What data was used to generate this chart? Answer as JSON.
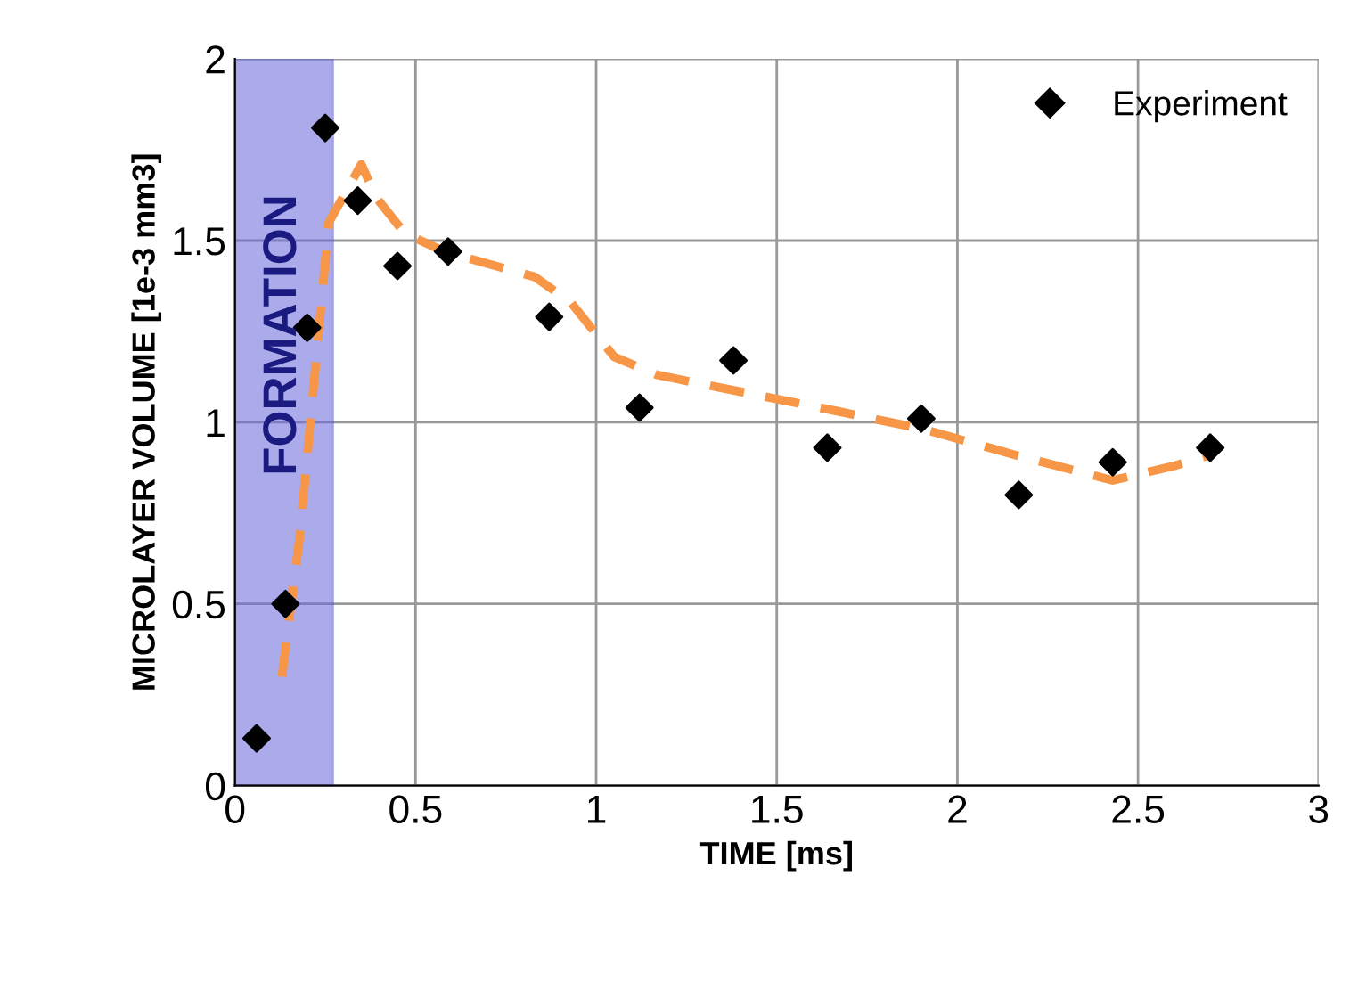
{
  "chart_data": {
    "type": "scatter",
    "xlabel": "TIME [ms]",
    "ylabel": "MICROLAYER VOLUME [1e-3 mm3]",
    "xlim": [
      0,
      3
    ],
    "xticks": [
      0,
      0.5,
      1,
      1.5,
      2,
      2.5,
      3
    ],
    "ylim": [
      0,
      2
    ],
    "yticks": [
      0,
      0.5,
      1,
      1.5,
      2
    ],
    "grid": true,
    "legend": "top right",
    "series": [
      {
        "name": "Experiment",
        "marker": "diamond",
        "color": "#000000",
        "x": [
          0.06,
          0.14,
          0.2,
          0.25,
          0.34,
          0.45,
          0.59,
          0.87,
          1.12,
          1.38,
          1.64,
          1.9,
          2.17,
          2.43,
          2.7
        ],
        "values": [
          0.13,
          0.5,
          1.26,
          1.81,
          1.61,
          1.43,
          1.47,
          1.29,
          1.04,
          1.17,
          0.93,
          1.01,
          0.8,
          0.89,
          0.93
        ]
      },
      {
        "type": "line",
        "line_style": "dashed",
        "color": "#f79646",
        "x": [
          0.13,
          0.18,
          0.23,
          0.26,
          0.35,
          0.39,
          0.47,
          0.58,
          0.83,
          0.93,
          1.05,
          1.17,
          1.42,
          1.67,
          1.91,
          2.16,
          2.43,
          2.6,
          2.7
        ],
        "values": [
          0.3,
          0.69,
          1.23,
          1.55,
          1.71,
          1.62,
          1.52,
          1.47,
          1.4,
          1.33,
          1.18,
          1.13,
          1.08,
          1.03,
          0.98,
          0.91,
          0.84,
          0.88,
          0.91
        ]
      }
    ],
    "bands": [
      {
        "axis": "x",
        "from": 0,
        "to": 0.27,
        "label": "FORMATION",
        "color": "#6666dd"
      }
    ]
  }
}
